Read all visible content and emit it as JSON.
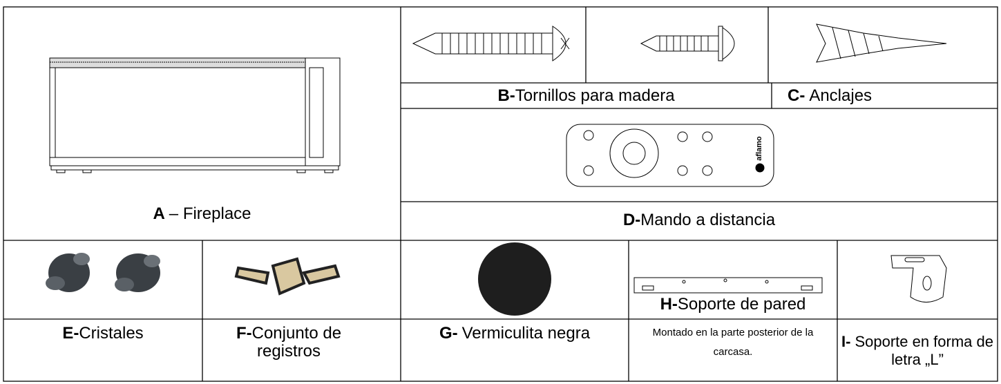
{
  "parts": [
    {
      "letter": "A",
      "name": "– Fireplace"
    },
    {
      "letter": "B-",
      "name": "Tornillos para madera"
    },
    {
      "letter": "C-",
      "name": "Anclajes"
    },
    {
      "letter": "D-",
      "name": "Mando a distancia"
    },
    {
      "letter": "E-",
      "name": "Cristales"
    },
    {
      "letter": "F-",
      "name": "Conjunto de registros"
    },
    {
      "letter": "G-",
      "name": "Vermiculita negra"
    },
    {
      "letter": "H-",
      "name": "Soporte de pared",
      "note": "Montado en la parte posterior de la carcasa."
    },
    {
      "letter": "I-",
      "name": "Soporte en forma de letra „L”"
    }
  ],
  "remote_brand": "aflamo"
}
